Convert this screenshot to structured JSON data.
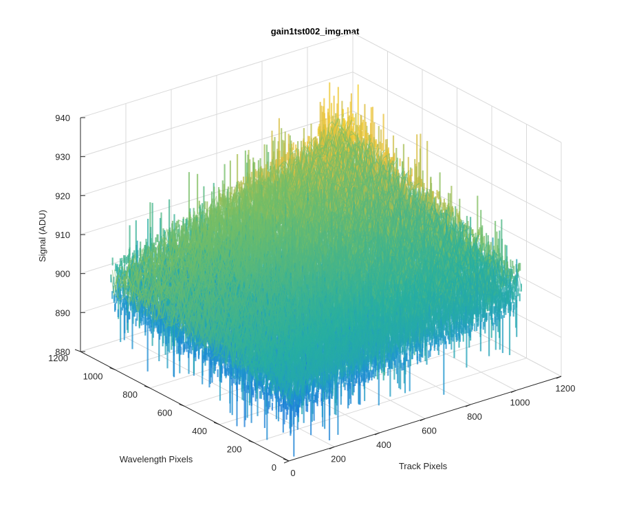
{
  "chart_data": {
    "type": "surface3d",
    "title": "gain1tst002_img.mat",
    "xlabel": "Track Pixels",
    "ylabel": "Wavelength Pixels",
    "zlabel": "Signal (ADU)",
    "xlim": [
      0,
      1200
    ],
    "ylim": [
      0,
      1200
    ],
    "zlim": [
      880,
      940
    ],
    "x_data_range": [
      0,
      1024
    ],
    "y_data_range": [
      0,
      1024
    ],
    "x_ticks": [
      "0",
      "200",
      "400",
      "600",
      "800",
      "1000",
      "1200"
    ],
    "y_ticks": [
      "0",
      "200",
      "400",
      "600",
      "800",
      "1000",
      "1200"
    ],
    "z_ticks": [
      "880",
      "890",
      "900",
      "910",
      "920",
      "930",
      "940"
    ],
    "grid": true,
    "colormap": "parula",
    "colors": {
      "low": "#1a6ee6",
      "mid": "#2aa8b0",
      "high": "#e8c23a"
    },
    "surface_trend": {
      "corner_x0_y0": 898,
      "corner_x1024_y0": 906,
      "corner_x0_y1024": 902,
      "corner_x1024_y1024": 923,
      "noise_amplitude": 6,
      "spike_max": 12
    }
  }
}
